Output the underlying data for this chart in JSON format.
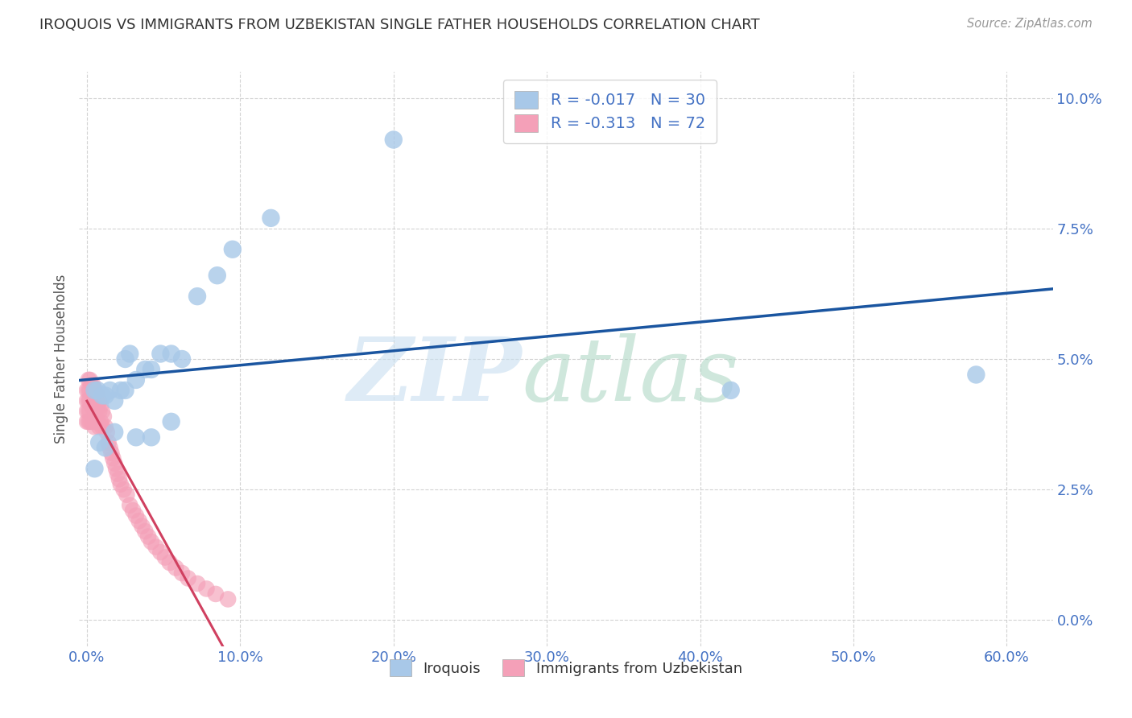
{
  "title": "IROQUOIS VS IMMIGRANTS FROM UZBEKISTAN SINGLE FATHER HOUSEHOLDS CORRELATION CHART",
  "source": "Source: ZipAtlas.com",
  "ylabel": "Single Father Households",
  "xlabel_ticks": [
    "0.0%",
    "10.0%",
    "20.0%",
    "30.0%",
    "40.0%",
    "50.0%",
    "60.0%"
  ],
  "xlabel_vals": [
    0.0,
    0.1,
    0.2,
    0.3,
    0.4,
    0.5,
    0.6
  ],
  "ylabel_ticks": [
    "0.0%",
    "2.5%",
    "5.0%",
    "7.5%",
    "10.0%"
  ],
  "ylabel_vals": [
    0.0,
    0.025,
    0.05,
    0.075,
    0.1
  ],
  "xlim": [
    -0.005,
    0.63
  ],
  "ylim": [
    -0.005,
    0.105
  ],
  "blue_R": -0.017,
  "blue_N": 30,
  "pink_R": -0.313,
  "pink_N": 72,
  "legend_labels": [
    "Iroquois",
    "Immigrants from Uzbekistan"
  ],
  "blue_color": "#a8c8e8",
  "pink_color": "#f4a0b8",
  "blue_line_color": "#1a55a0",
  "pink_line_color": "#d04060",
  "axis_label_color": "#4472c4",
  "grid_color": "#c8c8c8",
  "blue_points_x": [
    0.005,
    0.007,
    0.01,
    0.012,
    0.015,
    0.018,
    0.022,
    0.025,
    0.028,
    0.032,
    0.038,
    0.042,
    0.048,
    0.055,
    0.062,
    0.005,
    0.008,
    0.012,
    0.018,
    0.025,
    0.032,
    0.042,
    0.055,
    0.072,
    0.085,
    0.095,
    0.12,
    0.2,
    0.42,
    0.58
  ],
  "blue_points_y": [
    0.044,
    0.044,
    0.043,
    0.043,
    0.044,
    0.042,
    0.044,
    0.05,
    0.051,
    0.046,
    0.048,
    0.048,
    0.051,
    0.051,
    0.05,
    0.029,
    0.034,
    0.033,
    0.036,
    0.044,
    0.035,
    0.035,
    0.038,
    0.062,
    0.066,
    0.071,
    0.077,
    0.092,
    0.044,
    0.047
  ],
  "pink_points_x": [
    0.0,
    0.0,
    0.0,
    0.0,
    0.001,
    0.001,
    0.001,
    0.001,
    0.001,
    0.002,
    0.002,
    0.002,
    0.002,
    0.002,
    0.003,
    0.003,
    0.003,
    0.003,
    0.004,
    0.004,
    0.004,
    0.004,
    0.005,
    0.005,
    0.005,
    0.005,
    0.006,
    0.006,
    0.006,
    0.007,
    0.007,
    0.007,
    0.008,
    0.008,
    0.008,
    0.009,
    0.009,
    0.01,
    0.01,
    0.011,
    0.012,
    0.013,
    0.014,
    0.015,
    0.016,
    0.017,
    0.018,
    0.019,
    0.02,
    0.021,
    0.022,
    0.024,
    0.026,
    0.028,
    0.03,
    0.032,
    0.034,
    0.036,
    0.038,
    0.04,
    0.042,
    0.045,
    0.048,
    0.051,
    0.054,
    0.058,
    0.062,
    0.066,
    0.072,
    0.078,
    0.084,
    0.092
  ],
  "pink_points_y": [
    0.044,
    0.042,
    0.04,
    0.038,
    0.046,
    0.044,
    0.042,
    0.04,
    0.038,
    0.046,
    0.044,
    0.042,
    0.04,
    0.038,
    0.045,
    0.043,
    0.041,
    0.038,
    0.045,
    0.043,
    0.041,
    0.038,
    0.044,
    0.042,
    0.04,
    0.037,
    0.043,
    0.041,
    0.038,
    0.043,
    0.041,
    0.038,
    0.042,
    0.04,
    0.037,
    0.041,
    0.038,
    0.04,
    0.037,
    0.039,
    0.037,
    0.036,
    0.034,
    0.033,
    0.032,
    0.031,
    0.03,
    0.029,
    0.028,
    0.027,
    0.026,
    0.025,
    0.024,
    0.022,
    0.021,
    0.02,
    0.019,
    0.018,
    0.017,
    0.016,
    0.015,
    0.014,
    0.013,
    0.012,
    0.011,
    0.01,
    0.009,
    0.008,
    0.007,
    0.006,
    0.005,
    0.004
  ]
}
